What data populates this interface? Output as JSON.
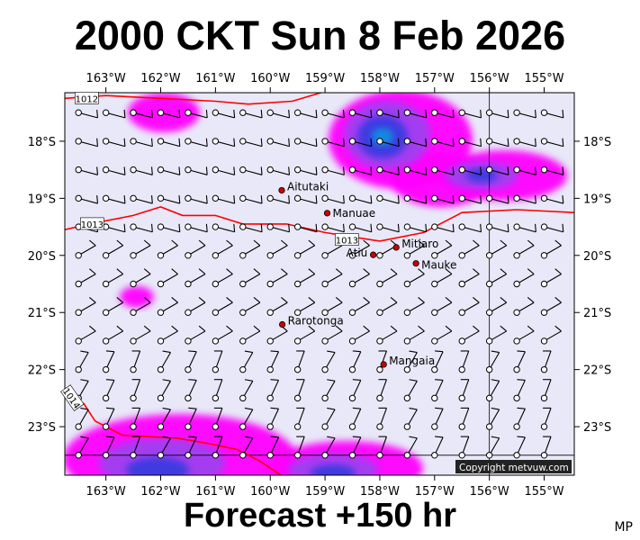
{
  "title": "2000 CKT Sun 8 Feb 2026",
  "footer": "Forecast +150 hr",
  "credit_corner": "MP",
  "copyright": "Copyright metvuw.com",
  "colors": {
    "ocean": "#e8e8f8",
    "rain_magenta": "#ff00ff",
    "rain_violet": "#a040f0",
    "rain_blue": "#3a3ae0",
    "rain_cyan": "#1090e0",
    "isobar": "#ff0000",
    "place_dot": "#cc0000"
  },
  "map": {
    "lon_min": -163.75,
    "lon_max": -154.45,
    "lat_max": -17.15,
    "lat_min": -23.85,
    "x_ticks": [
      "163°W",
      "162°W",
      "161°W",
      "160°W",
      "159°W",
      "158°W",
      "157°W",
      "156°W",
      "155°W"
    ],
    "x_tick_values": [
      -163,
      -162,
      -161,
      -160,
      -159,
      -158,
      -157,
      -156,
      -155
    ],
    "y_ticks": [
      "18°S",
      "19°S",
      "20°S",
      "21°S",
      "22°S",
      "23°S"
    ],
    "y_tick_values": [
      -18,
      -19,
      -20,
      -21,
      -22,
      -23
    ],
    "places": [
      {
        "name": "Aitutaki",
        "lon": -159.79,
        "lat": -18.86
      },
      {
        "name": "Manuae",
        "lon": -158.96,
        "lat": -19.26
      },
      {
        "name": "Mitiaro",
        "lon": -157.7,
        "lat": -19.86
      },
      {
        "name": "Atiu",
        "lon": -158.12,
        "lat": -19.99
      },
      {
        "name": "Mauke",
        "lon": -157.34,
        "lat": -20.14
      },
      {
        "name": "Rarotonga",
        "lon": -159.78,
        "lat": -21.21
      },
      {
        "name": "Mangaia",
        "lon": -157.93,
        "lat": -21.91
      }
    ],
    "isobars": [
      {
        "label": "1012",
        "points": [
          [
            -163.75,
            -17.25
          ],
          [
            -163.0,
            -17.2
          ],
          [
            -162.0,
            -17.25
          ],
          [
            -161.0,
            -17.3
          ],
          [
            -160.4,
            -17.35
          ],
          [
            -159.6,
            -17.3
          ],
          [
            -158.9,
            -17.1
          ]
        ]
      },
      {
        "label": "1013",
        "points": [
          [
            -163.75,
            -19.55
          ],
          [
            -163.3,
            -19.45
          ],
          [
            -162.5,
            -19.3
          ],
          [
            -162.0,
            -19.15
          ],
          [
            -161.6,
            -19.3
          ],
          [
            -161.0,
            -19.3
          ],
          [
            -160.5,
            -19.45
          ],
          [
            -159.7,
            -19.45
          ],
          [
            -159.0,
            -19.6
          ],
          [
            -158.0,
            -19.75
          ],
          [
            -157.2,
            -19.6
          ],
          [
            -156.5,
            -19.25
          ],
          [
            -155.5,
            -19.2
          ],
          [
            -154.45,
            -19.25
          ]
        ]
      },
      {
        "label": "1014",
        "points": [
          [
            -163.75,
            -22.35
          ],
          [
            -163.4,
            -22.6
          ],
          [
            -163.2,
            -22.9
          ],
          [
            -162.7,
            -23.15
          ],
          [
            -161.7,
            -23.2
          ],
          [
            -161.1,
            -23.3
          ],
          [
            -160.6,
            -23.4
          ],
          [
            -160.2,
            -23.6
          ],
          [
            -159.8,
            -23.85
          ]
        ]
      }
    ]
  }
}
